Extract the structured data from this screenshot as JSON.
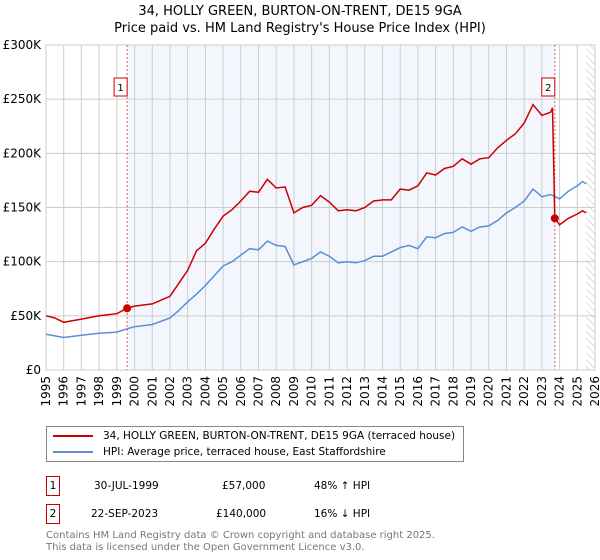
{
  "chart_data": {
    "type": "line",
    "title": "34, HOLLY GREEN, BURTON-ON-TRENT, DE15 9GA",
    "subtitle": "Price paid vs. HM Land Registry's House Price Index (HPI)",
    "xlim": [
      1995,
      2026
    ],
    "ylim": [
      0,
      300000
    ],
    "y_ticks": [
      {
        "v": 0,
        "label": "£0"
      },
      {
        "v": 50000,
        "label": "£50K"
      },
      {
        "v": 100000,
        "label": "£100K"
      },
      {
        "v": 150000,
        "label": "£150K"
      },
      {
        "v": 200000,
        "label": "£200K"
      },
      {
        "v": 250000,
        "label": "£250K"
      },
      {
        "v": 300000,
        "label": "£300K"
      }
    ],
    "x_ticks": [
      "1995",
      "1996",
      "1997",
      "1998",
      "1999",
      "2000",
      "2001",
      "2002",
      "2003",
      "2004",
      "2005",
      "2006",
      "2007",
      "2008",
      "2009",
      "2010",
      "2011",
      "2012",
      "2013",
      "2014",
      "2015",
      "2016",
      "2017",
      "2018",
      "2019",
      "2020",
      "2021",
      "2022",
      "2023",
      "2024",
      "2025",
      "2026"
    ],
    "grid": true,
    "shaded_range": [
      1999.58,
      2023.73
    ],
    "hatched_from": 2025.5,
    "series": [
      {
        "name": "34, HOLLY GREEN, BURTON-ON-TRENT, DE15 9GA (terraced house)",
        "color": "#cc0000",
        "x": [
          1995,
          1995.5,
          1996,
          1997,
          1998,
          1999,
          1999.58,
          2000,
          2001,
          2002,
          2002.5,
          2003,
          2003.5,
          2004,
          2004.5,
          2005,
          2005.5,
          2006,
          2006.5,
          2007,
          2007.5,
          2008,
          2008.5,
          2009,
          2009.5,
          2010,
          2010.5,
          2011,
          2011.5,
          2012,
          2012.5,
          2013,
          2013.5,
          2014,
          2014.5,
          2015,
          2015.5,
          2016,
          2016.5,
          2017,
          2017.5,
          2018,
          2018.5,
          2019,
          2019.5,
          2020,
          2020.5,
          2021,
          2021.5,
          2022,
          2022.5,
          2023,
          2023.5,
          2023.6,
          2023.73,
          2024,
          2024.5,
          2025,
          2025.3,
          2025.5
        ],
        "y": [
          50000,
          48000,
          44000,
          47000,
          50000,
          52000,
          57000,
          59000,
          61000,
          68000,
          80000,
          92000,
          110000,
          117000,
          130000,
          142000,
          148000,
          156000,
          165000,
          164000,
          176000,
          168000,
          169000,
          145000,
          150000,
          152000,
          161000,
          155000,
          147000,
          148000,
          147000,
          150000,
          156000,
          157000,
          157000,
          167000,
          166000,
          170000,
          182000,
          180000,
          186000,
          188000,
          195000,
          190000,
          195000,
          196000,
          205000,
          212000,
          218000,
          228000,
          245000,
          235000,
          238000,
          242000,
          140000,
          134000,
          140000,
          144000,
          147000,
          145000
        ]
      },
      {
        "name": "HPI: Average price, terraced house, East Staffordshire",
        "color": "#5b8ed6",
        "x": [
          1995,
          1996,
          1997,
          1998,
          1999,
          1999.58,
          2000,
          2001,
          2002,
          2002.5,
          2003,
          2003.5,
          2004,
          2004.5,
          2005,
          2005.5,
          2006,
          2006.5,
          2007,
          2007.5,
          2008,
          2008.5,
          2009,
          2009.5,
          2010,
          2010.5,
          2011,
          2011.5,
          2012,
          2012.5,
          2013,
          2013.5,
          2014,
          2014.5,
          2015,
          2015.5,
          2016,
          2016.5,
          2017,
          2017.5,
          2018,
          2018.5,
          2019,
          2019.5,
          2020,
          2020.5,
          2021,
          2021.5,
          2022,
          2022.5,
          2023,
          2023.5,
          2024,
          2024.5,
          2025,
          2025.3,
          2025.5
        ],
        "y": [
          33000,
          30000,
          32000,
          34000,
          35000,
          38000,
          40000,
          42000,
          48000,
          55000,
          63000,
          70000,
          78000,
          87000,
          96000,
          100000,
          106000,
          112000,
          111000,
          119000,
          115000,
          114000,
          97000,
          100000,
          103000,
          109000,
          105000,
          99000,
          100000,
          99000,
          101000,
          105000,
          105000,
          109000,
          113000,
          115000,
          112000,
          123000,
          122000,
          126000,
          127000,
          132000,
          128000,
          132000,
          133000,
          138000,
          145000,
          150000,
          156000,
          167000,
          160000,
          162000,
          158000,
          165000,
          170000,
          174000,
          172000
        ]
      }
    ],
    "annotations": [
      {
        "label": "1",
        "x": 1999.58,
        "y": 57000
      },
      {
        "label": "2",
        "x": 2023.73,
        "y": 140000
      }
    ]
  },
  "legend": {
    "items": [
      "34, HOLLY GREEN, BURTON-ON-TRENT, DE15 9GA (terraced house)",
      "HPI: Average price, terraced house, East Staffordshire"
    ]
  },
  "sales": [
    {
      "num": "1",
      "date": "30-JUL-1999",
      "price": "£57,000",
      "hpi": "48% ↑ HPI"
    },
    {
      "num": "2",
      "date": "22-SEP-2023",
      "price": "£140,000",
      "hpi": "16% ↓ HPI"
    }
  ],
  "footer": {
    "line1": "Contains HM Land Registry data © Crown copyright and database right 2025.",
    "line2": "This data is licensed under the Open Government Licence v3.0."
  }
}
